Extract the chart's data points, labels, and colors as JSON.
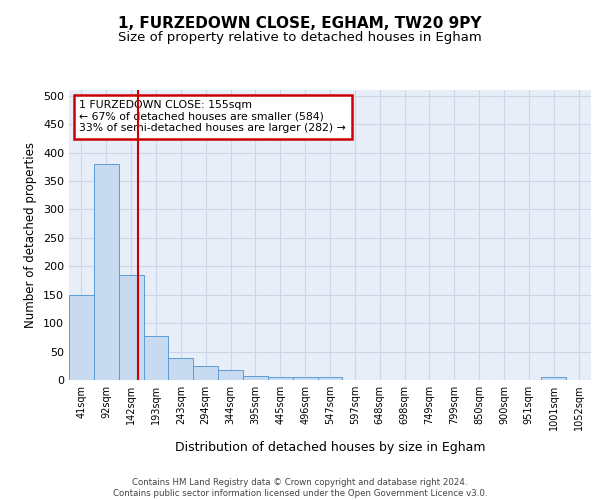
{
  "title": "1, FURZEDOWN CLOSE, EGHAM, TW20 9PY",
  "subtitle": "Size of property relative to detached houses in Egham",
  "xlabel": "Distribution of detached houses by size in Egham",
  "ylabel": "Number of detached properties",
  "bin_labels": [
    "41sqm",
    "92sqm",
    "142sqm",
    "193sqm",
    "243sqm",
    "294sqm",
    "344sqm",
    "395sqm",
    "445sqm",
    "496sqm",
    "547sqm",
    "597sqm",
    "648sqm",
    "698sqm",
    "749sqm",
    "799sqm",
    "850sqm",
    "900sqm",
    "951sqm",
    "1001sqm",
    "1052sqm"
  ],
  "bar_values": [
    150,
    380,
    185,
    77,
    38,
    25,
    18,
    7,
    5,
    5,
    5,
    0,
    0,
    0,
    0,
    0,
    0,
    0,
    0,
    5,
    0
  ],
  "bar_color": "#c8daef",
  "bar_edge_color": "#5b9bd5",
  "grid_color": "#cdd6e8",
  "background_color": "#e8eef8",
  "red_line_x": 2.26,
  "annotation_text": "1 FURZEDOWN CLOSE: 155sqm\n← 67% of detached houses are smaller (584)\n33% of semi-detached houses are larger (282) →",
  "annotation_box_facecolor": "#ffffff",
  "annotation_box_edgecolor": "#cc0000",
  "footer_text": "Contains HM Land Registry data © Crown copyright and database right 2024.\nContains public sector information licensed under the Open Government Licence v3.0.",
  "ylim": [
    0,
    510
  ],
  "yticks": [
    0,
    50,
    100,
    150,
    200,
    250,
    300,
    350,
    400,
    450,
    500
  ]
}
